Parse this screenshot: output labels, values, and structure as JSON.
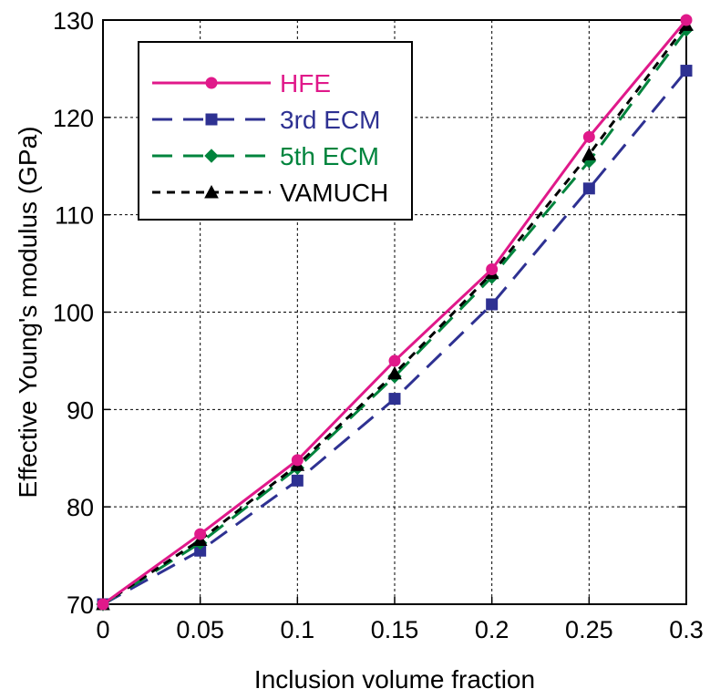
{
  "chart_data": {
    "type": "line",
    "x": [
      0,
      0.05,
      0.1,
      0.15,
      0.2,
      0.25,
      0.3
    ],
    "xticks": [
      "0",
      "0.05",
      "0.1",
      "0.15",
      "0.2",
      "0.25",
      "0.3"
    ],
    "yticks": [
      "70",
      "80",
      "90",
      "100",
      "110",
      "120",
      "130"
    ],
    "xlim": [
      0,
      0.3
    ],
    "ylim": [
      70,
      130
    ],
    "xlabel": "Inclusion volume fraction",
    "ylabel": "Effective Young's modulus (GPa)",
    "grid": true,
    "legend_position": "top-left",
    "series": [
      {
        "name": "HFE",
        "color": "#e0198a",
        "dash": "solid",
        "marker": "circle",
        "values": [
          70.0,
          77.2,
          84.8,
          95.0,
          104.4,
          118.0,
          130.0
        ]
      },
      {
        "name": "3rd ECM",
        "color": "#2e3192",
        "dash": "long-dash",
        "marker": "square",
        "values": [
          70.0,
          75.5,
          82.7,
          91.1,
          100.8,
          112.7,
          124.8
        ]
      },
      {
        "name": "5th ECM",
        "color": "#00843d",
        "dash": "long-dash",
        "marker": "diamond",
        "values": [
          70.0,
          76.3,
          84.0,
          93.4,
          103.6,
          115.5,
          129.0
        ]
      },
      {
        "name": "VAMUCH",
        "color": "#000000",
        "dash": "short-dash",
        "marker": "triangle",
        "values": [
          70.0,
          76.6,
          84.3,
          93.7,
          104.0,
          116.2,
          129.5
        ]
      }
    ]
  }
}
